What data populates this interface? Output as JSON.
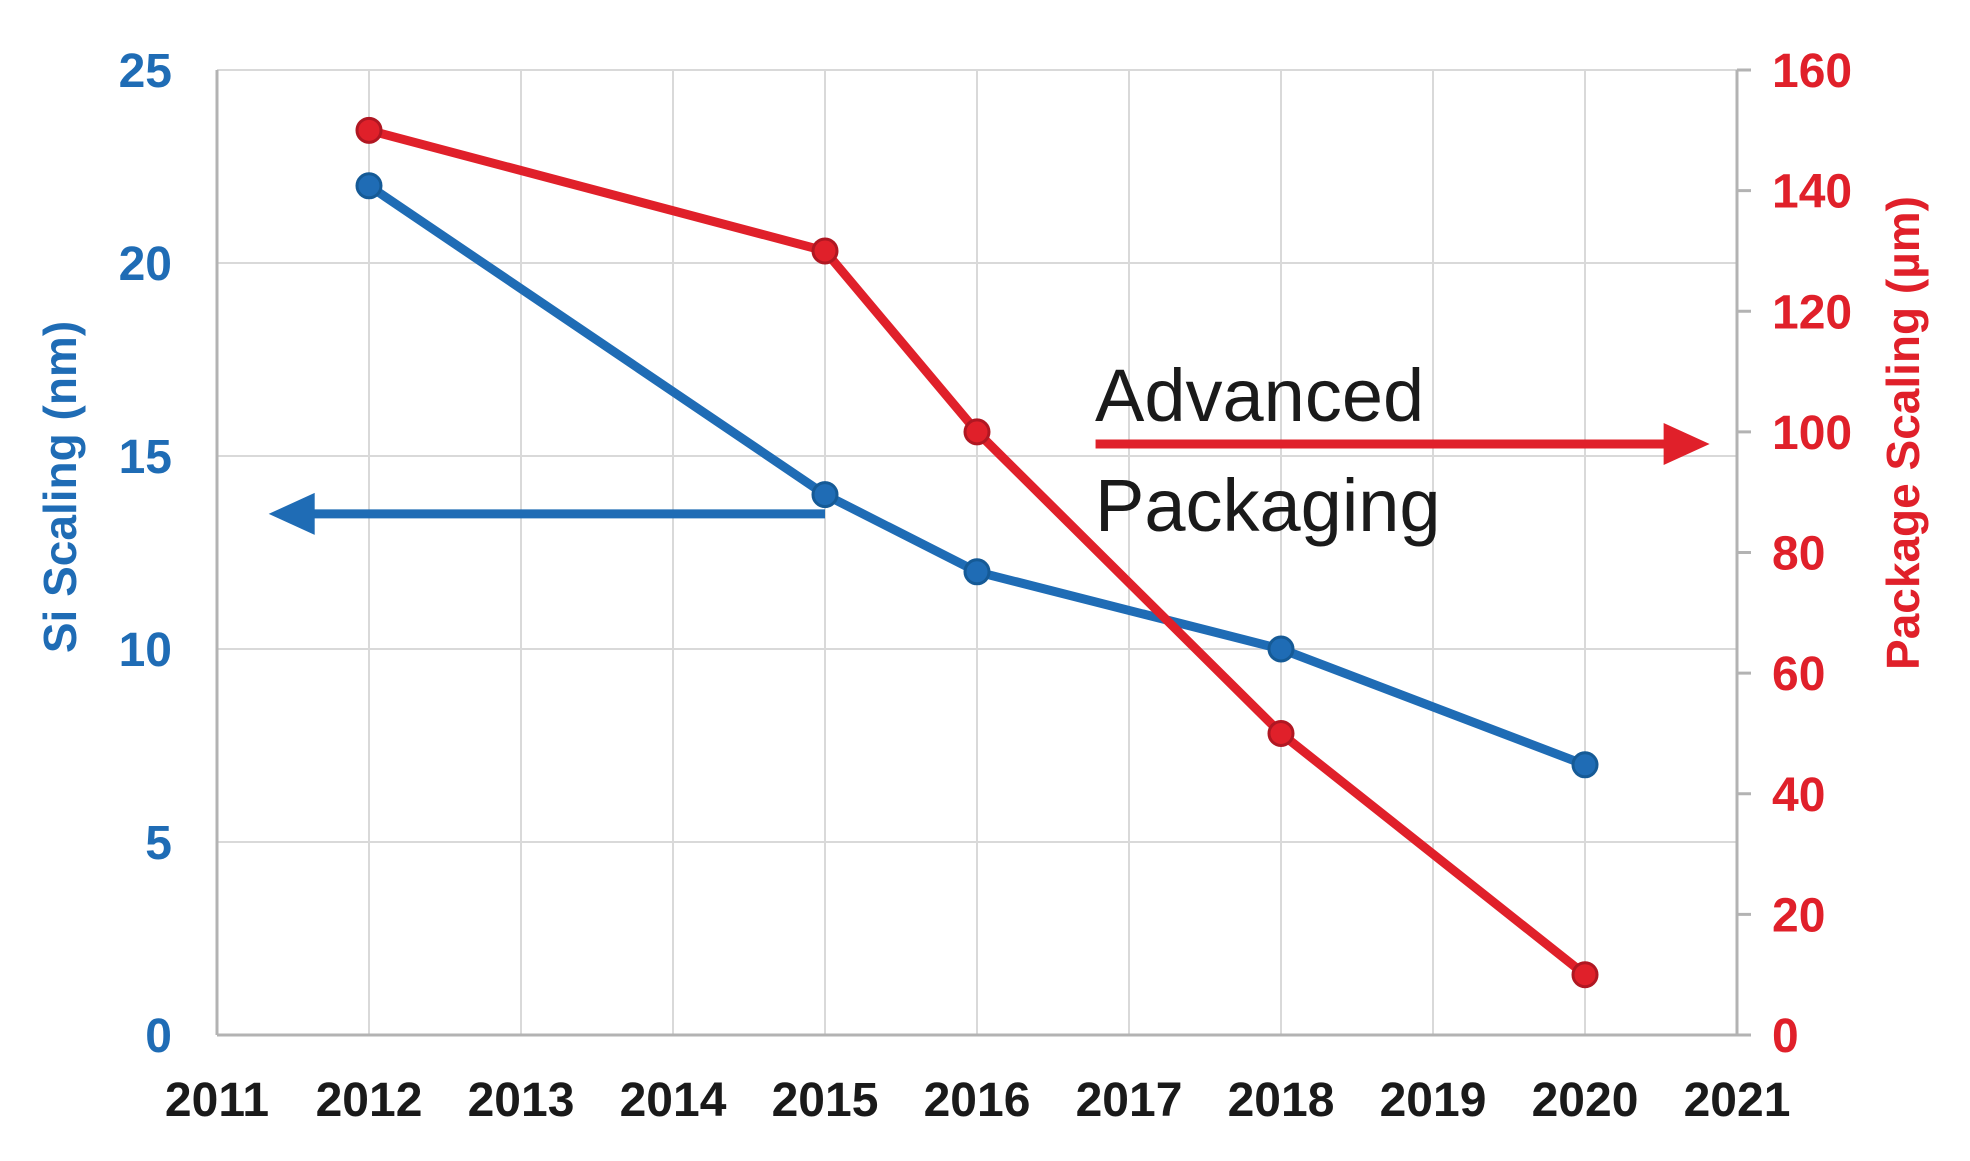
{
  "chart_data": {
    "type": "line",
    "background": "#FFFFFF",
    "x_axis": {
      "range": [
        2011,
        2021
      ],
      "tick_labels": [
        "2011",
        "2012",
        "2013",
        "2014",
        "2015",
        "2016",
        "2017",
        "2018",
        "2019",
        "2020",
        "2021"
      ],
      "label_color": "#1a1a1a"
    },
    "left_axis": {
      "label": "Si Scaling (nm)",
      "range": [
        0,
        25
      ],
      "ticks": [
        0,
        5,
        10,
        15,
        20,
        25
      ],
      "color": "#1F6CB5"
    },
    "right_axis": {
      "label": "Package Scaling (µm)",
      "range": [
        0,
        160
      ],
      "ticks": [
        0,
        20,
        40,
        60,
        80,
        100,
        120,
        140,
        160
      ],
      "color": "#E0202A"
    },
    "grid": {
      "gridline_color": "#D9D9D9",
      "axis_color": "#B3B3B3"
    },
    "series": [
      {
        "name": "Si Scaling (nm)",
        "axis": "left",
        "color": "#1F6CB5",
        "marker_edge": "#155A96",
        "x": [
          2012,
          2015,
          2016,
          2018,
          2020
        ],
        "values": [
          22,
          14,
          12,
          10,
          7
        ]
      },
      {
        "name": "Package Scaling (µm)",
        "axis": "right",
        "color": "#E0202A",
        "marker_edge": "#B01722",
        "x": [
          2012,
          2015,
          2016,
          2018,
          2020
        ],
        "values": [
          150,
          130,
          100,
          50,
          10
        ]
      }
    ],
    "annotation": {
      "line1": "Advanced",
      "line2": "Packaging",
      "color": "#1a1a1a"
    },
    "arrows": [
      {
        "name": "si-axis-arrow",
        "axis": "left",
        "value": 13.5,
        "from_year": 2015.0,
        "to_year": 2011.34,
        "color": "#1F6CB5"
      },
      {
        "name": "package-axis-arrow",
        "axis": "right",
        "value": 98,
        "from_year": 2016.78,
        "to_year": 2020.82,
        "color": "#E0202A"
      }
    ]
  }
}
